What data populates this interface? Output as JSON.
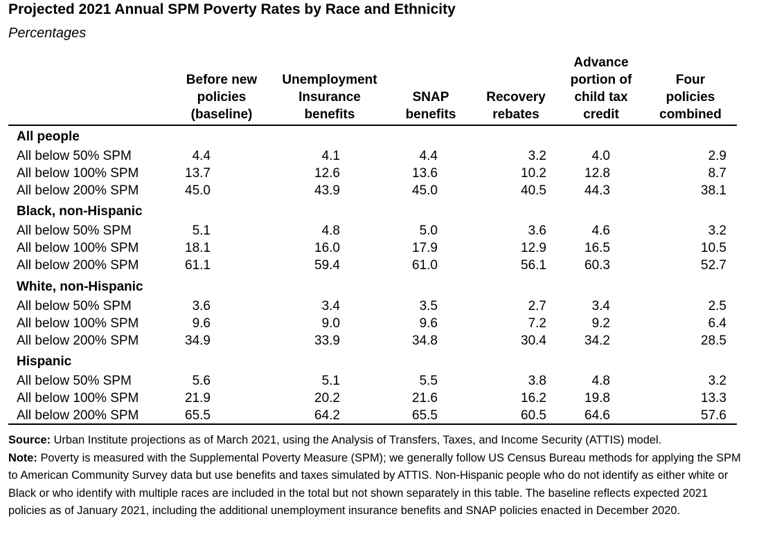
{
  "title": "Projected 2021 Annual SPM Poverty Rates by Race and Ethnicity",
  "subtitle": "Percentages",
  "columns": [
    "Before new\npolicies\n(baseline)",
    "Unemployment\nInsurance\nbenefits",
    "SNAP\nbenefits",
    "Recovery\nrebates",
    "Advance\nportion of\nchild tax\ncredit",
    "Four\npolicies\ncombined"
  ],
  "groups": [
    {
      "label": "All people",
      "rows": [
        {
          "label": "All below 50% SPM",
          "values": [
            "4.4",
            "4.1",
            "4.4",
            "3.2",
            "4.0",
            "2.9"
          ]
        },
        {
          "label": "All below 100% SPM",
          "values": [
            "13.7",
            "12.6",
            "13.6",
            "10.2",
            "12.8",
            "8.7"
          ]
        },
        {
          "label": "All below 200% SPM",
          "values": [
            "45.0",
            "43.9",
            "45.0",
            "40.5",
            "44.3",
            "38.1"
          ]
        }
      ]
    },
    {
      "label": "Black, non-Hispanic",
      "rows": [
        {
          "label": "All below 50% SPM",
          "values": [
            "5.1",
            "4.8",
            "5.0",
            "3.6",
            "4.6",
            "3.2"
          ]
        },
        {
          "label": "All below 100% SPM",
          "values": [
            "18.1",
            "16.0",
            "17.9",
            "12.9",
            "16.5",
            "10.5"
          ]
        },
        {
          "label": "All below 200% SPM",
          "values": [
            "61.1",
            "59.4",
            "61.0",
            "56.1",
            "60.3",
            "52.7"
          ]
        }
      ]
    },
    {
      "label": "White, non-Hispanic",
      "rows": [
        {
          "label": "All below 50% SPM",
          "values": [
            "3.6",
            "3.4",
            "3.5",
            "2.7",
            "3.4",
            "2.5"
          ]
        },
        {
          "label": "All below 100% SPM",
          "values": [
            "9.6",
            "9.0",
            "9.6",
            "7.2",
            "9.2",
            "6.4"
          ]
        },
        {
          "label": "All below 200% SPM",
          "values": [
            "34.9",
            "33.9",
            "34.8",
            "30.4",
            "34.2",
            "28.5"
          ]
        }
      ]
    },
    {
      "label": "Hispanic",
      "rows": [
        {
          "label": "All below 50% SPM",
          "values": [
            "5.6",
            "5.1",
            "5.5",
            "3.8",
            "4.8",
            "3.2"
          ]
        },
        {
          "label": "All below 100% SPM",
          "values": [
            "21.9",
            "20.2",
            "21.6",
            "16.2",
            "19.8",
            "13.3"
          ]
        },
        {
          "label": "All below 200% SPM",
          "values": [
            "65.5",
            "64.2",
            "65.5",
            "60.5",
            "64.6",
            "57.6"
          ]
        }
      ]
    }
  ],
  "source_label": "Source:",
  "source_text": " Urban Institute projections as of March 2021, using the Analysis of Transfers, Taxes, and Income Security (ATTIS) model.",
  "note_label": "Note:",
  "note_text": " Poverty is measured with the Supplemental Poverty Measure (SPM); we generally follow US Census Bureau methods for applying the SPM to American Community Survey data but use benefits and taxes simulated by ATTIS. Non-Hispanic people who do not identify as either white or Black or who identify with multiple races are included in the total but not shown separately in this table. The baseline reflects expected 2021 policies as of January 2021, including the additional unemployment insurance benefits and SNAP policies enacted in December 2020."
}
